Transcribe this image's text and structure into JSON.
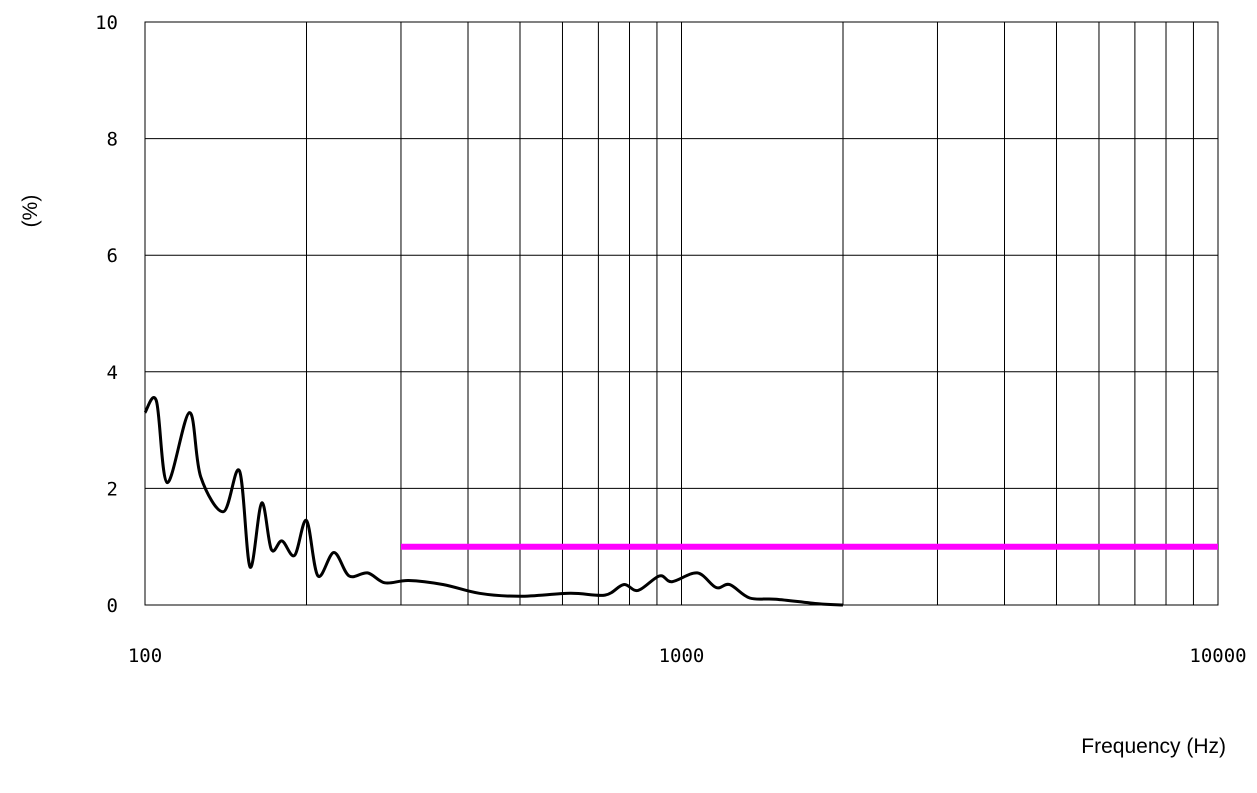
{
  "chart_data": {
    "type": "line",
    "title": "",
    "xlabel": "Frequency (Hz)",
    "ylabel": "(%)",
    "x_scale": "log",
    "xlim": [
      100,
      10000
    ],
    "ylim": [
      0,
      10
    ],
    "grid": true,
    "legend": "none",
    "x_tick_labels": [
      "100",
      "1000",
      "10000"
    ],
    "x_tick_values": [
      100,
      1000,
      10000
    ],
    "x_gridlines": [
      200,
      300,
      400,
      500,
      600,
      700,
      800,
      900,
      1000,
      2000,
      3000,
      4000,
      5000,
      6000,
      7000,
      8000,
      9000
    ],
    "y_tick_labels": [
      "0",
      "2",
      "4",
      "6",
      "8",
      "10"
    ],
    "y_tick_values": [
      0,
      2,
      4,
      6,
      8,
      10
    ],
    "series": [
      {
        "color": "#000000",
        "points": [
          [
            100,
            3.3
          ],
          [
            105,
            3.5
          ],
          [
            110,
            2.1
          ],
          [
            121,
            3.3
          ],
          [
            127,
            2.2
          ],
          [
            140,
            1.6
          ],
          [
            150,
            2.3
          ],
          [
            157,
            0.65
          ],
          [
            165,
            1.75
          ],
          [
            172,
            0.95
          ],
          [
            180,
            1.1
          ],
          [
            190,
            0.85
          ],
          [
            200,
            1.45
          ],
          [
            210,
            0.5
          ],
          [
            225,
            0.9
          ],
          [
            240,
            0.5
          ],
          [
            260,
            0.55
          ],
          [
            280,
            0.38
          ],
          [
            310,
            0.42
          ],
          [
            360,
            0.35
          ],
          [
            420,
            0.2
          ],
          [
            500,
            0.15
          ],
          [
            620,
            0.2
          ],
          [
            720,
            0.17
          ],
          [
            780,
            0.35
          ],
          [
            830,
            0.25
          ],
          [
            910,
            0.5
          ],
          [
            960,
            0.4
          ],
          [
            1070,
            0.55
          ],
          [
            1160,
            0.3
          ],
          [
            1230,
            0.35
          ],
          [
            1340,
            0.12
          ],
          [
            1500,
            0.1
          ],
          [
            1800,
            0.02
          ],
          [
            2000,
            0.0
          ]
        ]
      },
      {
        "color": "#ff00ff",
        "points": [
          [
            300,
            1.0
          ],
          [
            10000,
            1.0
          ]
        ]
      }
    ]
  }
}
